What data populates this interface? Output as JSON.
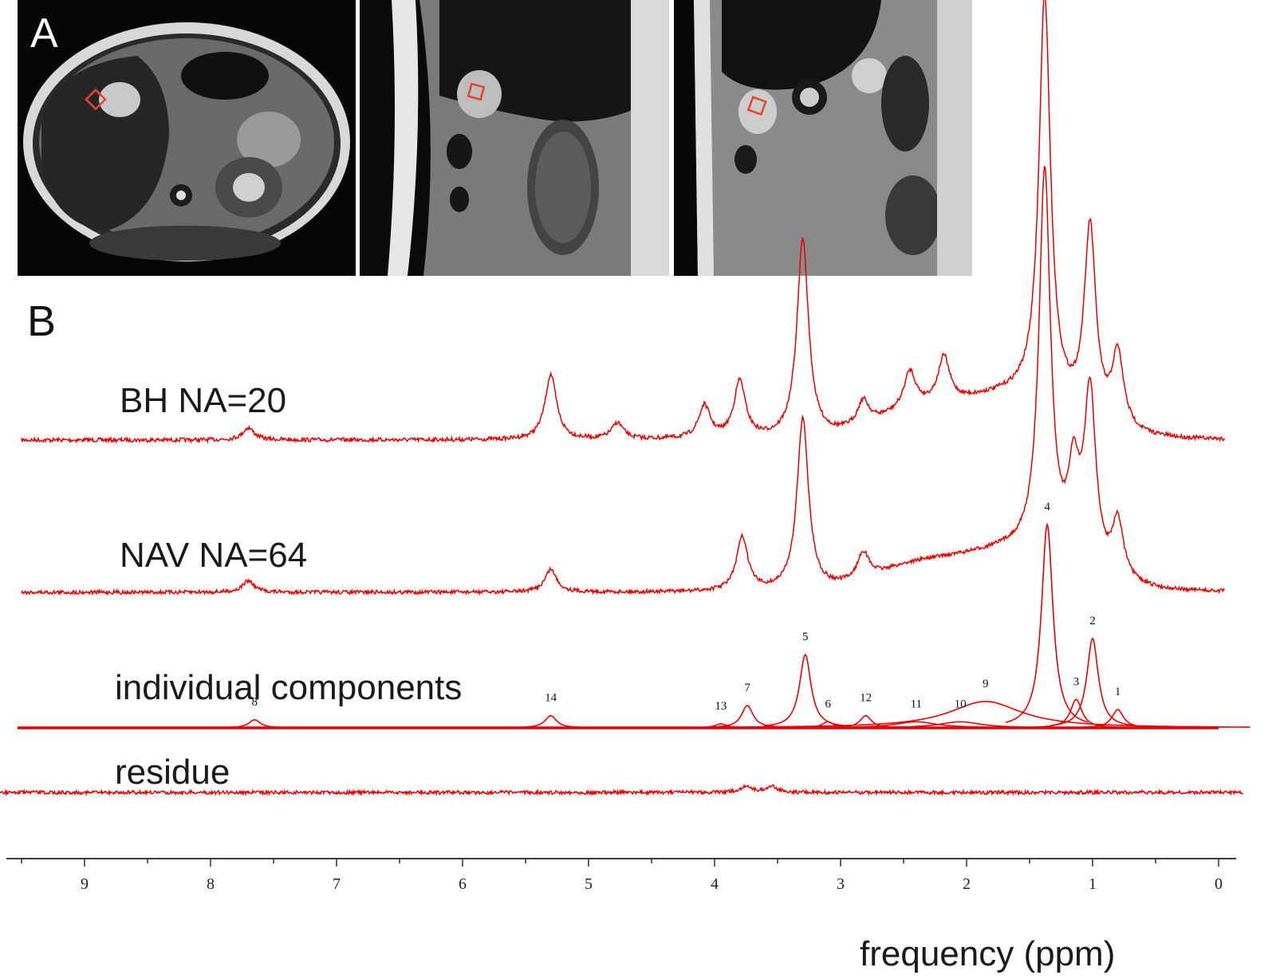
{
  "figure": {
    "panel_a_label": "A",
    "panel_b_label": "B",
    "roi_color": "#e8452a",
    "trace_color": "#e60000"
  },
  "chart_data": {
    "type": "line",
    "xlabel": "frequency (ppm)",
    "ylabel": "",
    "xlim": [
      9.6,
      -0.2
    ],
    "x_reversed": true,
    "x_ticks": [
      9,
      8,
      7,
      6,
      5,
      4,
      3,
      2,
      1,
      0
    ],
    "grid": false,
    "series": [
      {
        "name": "BH NA=20",
        "peaks": [
          {
            "ppm": 7.7,
            "height": 0.03
          },
          {
            "ppm": 5.3,
            "height": 0.16
          },
          {
            "ppm": 4.77,
            "height": 0.04
          },
          {
            "ppm": 4.08,
            "height": 0.08
          },
          {
            "ppm": 3.8,
            "height": 0.14
          },
          {
            "ppm": 3.3,
            "height": 0.49
          },
          {
            "ppm": 2.82,
            "height": 0.06
          },
          {
            "ppm": 2.45,
            "height": 0.09
          },
          {
            "ppm": 2.18,
            "height": 0.11
          },
          {
            "ppm": 1.38,
            "height": 1.0
          },
          {
            "ppm": 1.02,
            "height": 0.47
          },
          {
            "ppm": 0.8,
            "height": 0.18
          }
        ]
      },
      {
        "name": "NAV NA=64",
        "peaks": [
          {
            "ppm": 7.7,
            "height": 0.03
          },
          {
            "ppm": 5.3,
            "height": 0.06
          },
          {
            "ppm": 3.78,
            "height": 0.14
          },
          {
            "ppm": 3.3,
            "height": 0.45
          },
          {
            "ppm": 2.82,
            "height": 0.07
          },
          {
            "ppm": 1.38,
            "height": 1.0
          },
          {
            "ppm": 1.15,
            "height": 0.22
          },
          {
            "ppm": 1.02,
            "height": 0.46
          },
          {
            "ppm": 0.8,
            "height": 0.15
          }
        ]
      },
      {
        "name": "individual components",
        "components": [
          {
            "label": "1",
            "ppm": 0.8,
            "height": 0.09
          },
          {
            "label": "2",
            "ppm": 1.0,
            "height": 0.44
          },
          {
            "label": "3",
            "ppm": 1.13,
            "height": 0.14
          },
          {
            "label": "4",
            "ppm": 1.36,
            "height": 1.0
          },
          {
            "label": "9",
            "ppm": 1.85,
            "height": 0.13
          },
          {
            "label": "10",
            "ppm": 2.05,
            "height": 0.03
          },
          {
            "label": "11",
            "ppm": 2.4,
            "height": 0.03
          },
          {
            "label": "12",
            "ppm": 2.8,
            "height": 0.06
          },
          {
            "label": "6",
            "ppm": 3.1,
            "height": 0.03
          },
          {
            "label": "5",
            "ppm": 3.28,
            "height": 0.36
          },
          {
            "label": "7",
            "ppm": 3.74,
            "height": 0.11
          },
          {
            "label": "13",
            "ppm": 3.95,
            "height": 0.02
          },
          {
            "label": "14",
            "ppm": 5.3,
            "height": 0.06
          },
          {
            "label": "8",
            "ppm": 7.65,
            "height": 0.04
          }
        ]
      },
      {
        "name": "residue",
        "peaks": [
          {
            "ppm": 3.75,
            "height": 0.02
          },
          {
            "ppm": 3.55,
            "height": 0.02
          }
        ]
      }
    ]
  }
}
